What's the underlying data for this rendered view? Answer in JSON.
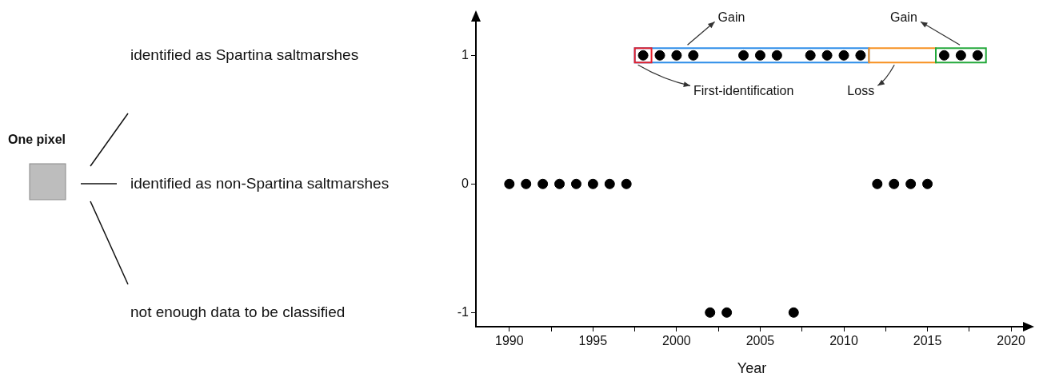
{
  "chart_data": {
    "type": "scatter",
    "xlabel": "Year",
    "x": [
      1990,
      1991,
      1992,
      1993,
      1994,
      1995,
      1996,
      1997,
      1998,
      1999,
      2000,
      2001,
      2002,
      2003,
      2004,
      2005,
      2006,
      2007,
      2008,
      2009,
      2010,
      2011,
      2012,
      2013,
      2014,
      2015,
      2016,
      2017,
      2018
    ],
    "series": [
      {
        "color": "#000000",
        "values": [
          0,
          0,
          0,
          0,
          0,
          0,
          0,
          0,
          1,
          1,
          1,
          1,
          -1,
          -1,
          1,
          1,
          1,
          -1,
          1,
          1,
          1,
          1,
          0,
          0,
          0,
          0,
          1,
          1,
          1
        ]
      }
    ],
    "xlim": [
      1988,
      2021
    ],
    "xticks": [
      1990,
      {
        "value": 1992.5,
        "label": null
      },
      1995,
      {
        "value": 1997.5,
        "label": null
      },
      2000,
      {
        "value": 2002.5,
        "label": null
      },
      2005,
      {
        "value": 2007.5,
        "label": null
      },
      2010,
      {
        "value": 2012.5,
        "label": null
      },
      2015,
      {
        "value": 2017.5,
        "label": null
      },
      2020
    ],
    "ylim": [
      -1.11,
      1.3
    ],
    "yticks": [
      -1,
      0,
      1
    ],
    "annotations": [
      "First-identification",
      "Gain",
      "Loss",
      "Gain",
      "identified as Spartina saltmarshes",
      "identified as non-Spartina saltmarshes",
      "not enough data to be classified",
      "One pixel"
    ],
    "grid": false,
    "legend": false,
    "marker": "circle"
  }
}
